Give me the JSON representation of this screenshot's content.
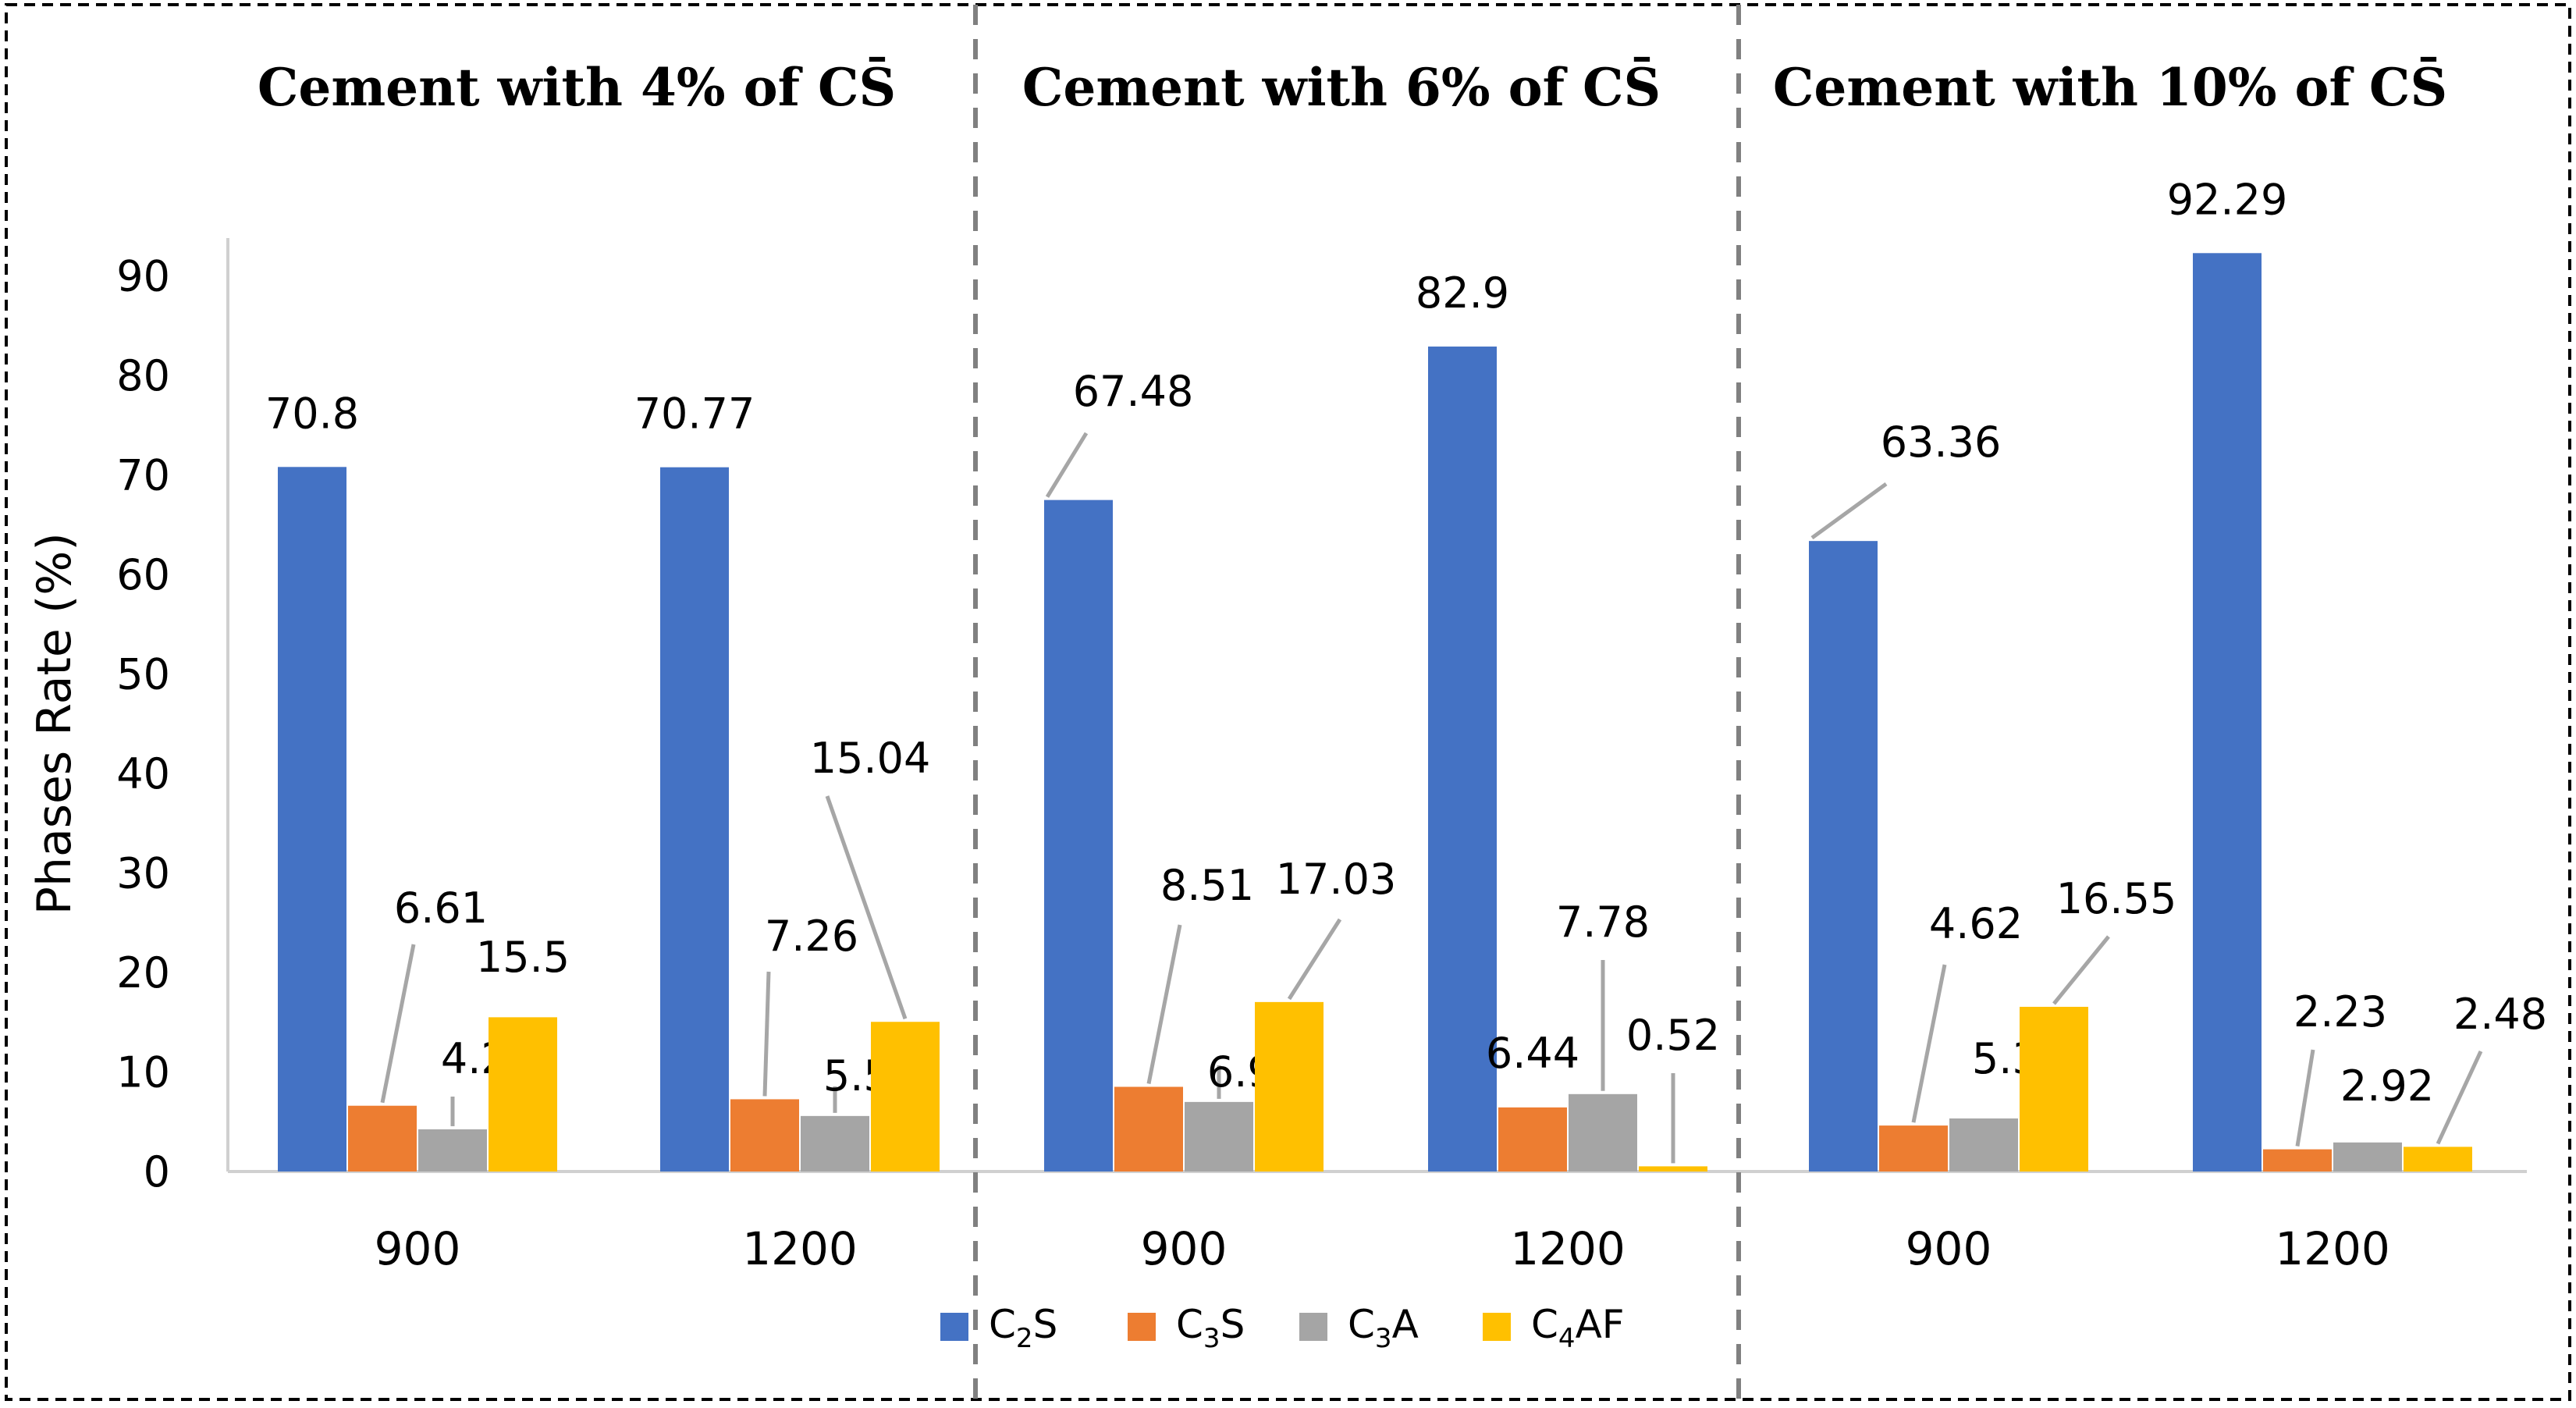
{
  "chart_data": {
    "type": "bar",
    "ylabel": "Phases Rate (%)",
    "ylim": [
      0,
      95
    ],
    "yticks": [
      0,
      10,
      20,
      30,
      40,
      50,
      60,
      70,
      80,
      90
    ],
    "grid": false,
    "legend_position": "bottom",
    "colors": {
      "C2S": "#4472C4",
      "C3S": "#ED7D31",
      "C3A": "#A5A5A5",
      "C4AF": "#FFC000",
      "leader": "#A6A6A6",
      "axis": "#D0D0D0",
      "divider": "#808080",
      "frame": "#000000"
    },
    "series": [
      {
        "key": "C2S",
        "base": "C",
        "sub": "2",
        "suffix": "S"
      },
      {
        "key": "C3S",
        "base": "C",
        "sub": "3",
        "suffix": "S"
      },
      {
        "key": "C3A",
        "base": "C",
        "sub": "3",
        "suffix": "A"
      },
      {
        "key": "C4AF",
        "base": "C",
        "sub": "4",
        "suffix": "AF"
      }
    ],
    "panels": [
      {
        "title_prefix": "Cement with 4% of ",
        "title_symbol": "CS̄",
        "groups": [
          {
            "category": "900",
            "values": [
              70.8,
              6.61,
              4.24,
              15.5
            ],
            "labels": [
              "70.8",
              "6.61",
              "4.24",
              "15.5"
            ]
          },
          {
            "category": "1200",
            "values": [
              70.77,
              7.26,
              5.58,
              15.04
            ],
            "labels": [
              "70.77",
              "7.26",
              "5.58",
              "15.04"
            ]
          }
        ]
      },
      {
        "title_prefix": "Cement with 6% of ",
        "title_symbol": "CS̄",
        "groups": [
          {
            "category": "900",
            "values": [
              67.48,
              8.51,
              6.99,
              17.03
            ],
            "labels": [
              "67.48",
              "8.51",
              "6.99",
              "17.03"
            ]
          },
          {
            "category": "1200",
            "values": [
              82.9,
              6.44,
              7.78,
              0.52
            ],
            "labels": [
              "82.9",
              "6.44",
              "7.78",
              "0.52"
            ]
          }
        ]
      },
      {
        "title_prefix": "Cement with 10% of ",
        "title_symbol": "CS̄",
        "groups": [
          {
            "category": "900",
            "values": [
              63.36,
              4.62,
              5.33,
              16.55
            ],
            "labels": [
              "63.36",
              "4.62",
              "5.33",
              "16.55"
            ]
          },
          {
            "category": "1200",
            "values": [
              92.29,
              2.23,
              2.92,
              2.48
            ],
            "labels": [
              "92.29",
              "2.23",
              "2.92",
              "2.48"
            ]
          }
        ]
      }
    ]
  }
}
